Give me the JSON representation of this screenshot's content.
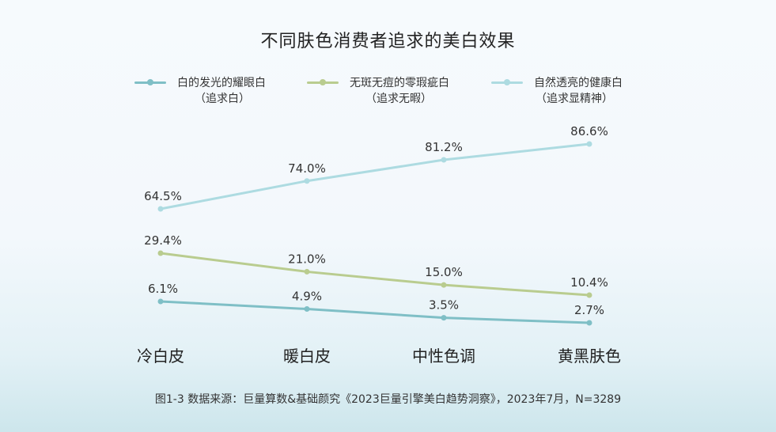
{
  "chart_data": {
    "type": "line",
    "title": "不同肤色消费者追求的美白效果",
    "categories": [
      "冷白皮",
      "暖白皮",
      "中性色调",
      "黄黑肤色"
    ],
    "series": [
      {
        "name": "白的发光的耀眼白",
        "subtitle": "（追求白）",
        "color": "#7fbfc6",
        "values": [
          6.1,
          4.9,
          3.5,
          2.7
        ],
        "labels": [
          "6.1%",
          "4.9%",
          "3.5%",
          "2.7%"
        ]
      },
      {
        "name": "无斑无痘的零瑕疵白",
        "subtitle": "（追求无暇）",
        "color": "#b9cc8f",
        "values": [
          29.4,
          21.0,
          15.0,
          10.4
        ],
        "labels": [
          "29.4%",
          "21.0%",
          "15.0%",
          "10.4%"
        ]
      },
      {
        "name": "自然透亮的健康白",
        "subtitle": "（追求显精神）",
        "color": "#addbe1",
        "values": [
          64.5,
          74.0,
          81.2,
          86.6
        ],
        "labels": [
          "64.5%",
          "74.0%",
          "81.2%",
          "86.6%"
        ]
      }
    ],
    "legend_position": "top",
    "grid": false,
    "source": "图1-3 数据来源：巨量算数&基础颜究《2023巨量引擎美白趋势洞察》，2023年7月，N=3289"
  }
}
